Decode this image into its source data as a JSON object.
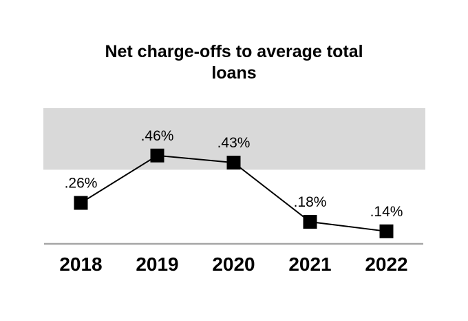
{
  "chart_data": {
    "type": "line",
    "title": "Net charge-offs to average total loans",
    "title_lines": [
      "Net charge-offs to average total",
      "loans"
    ],
    "categories": [
      "2018",
      "2019",
      "2020",
      "2021",
      "2022"
    ],
    "series": [
      {
        "name": "Net charge-offs to average total loans",
        "values": [
          0.26,
          0.46,
          0.43,
          0.18,
          0.14
        ],
        "point_labels": [
          ".26%",
          ".46%",
          ".43%",
          ".18%",
          ".14%"
        ],
        "color": "#000000",
        "marker": "square"
      }
    ],
    "xlabel": "",
    "ylabel": "",
    "ylim": [
      0.09,
      0.66
    ],
    "shaded_band": {
      "from": 0.4,
      "to": 0.66,
      "color": "#d9d9d9"
    },
    "axis_line_color": "#a6a6a6",
    "text_color": "#000000",
    "grid": false,
    "legend": false
  }
}
